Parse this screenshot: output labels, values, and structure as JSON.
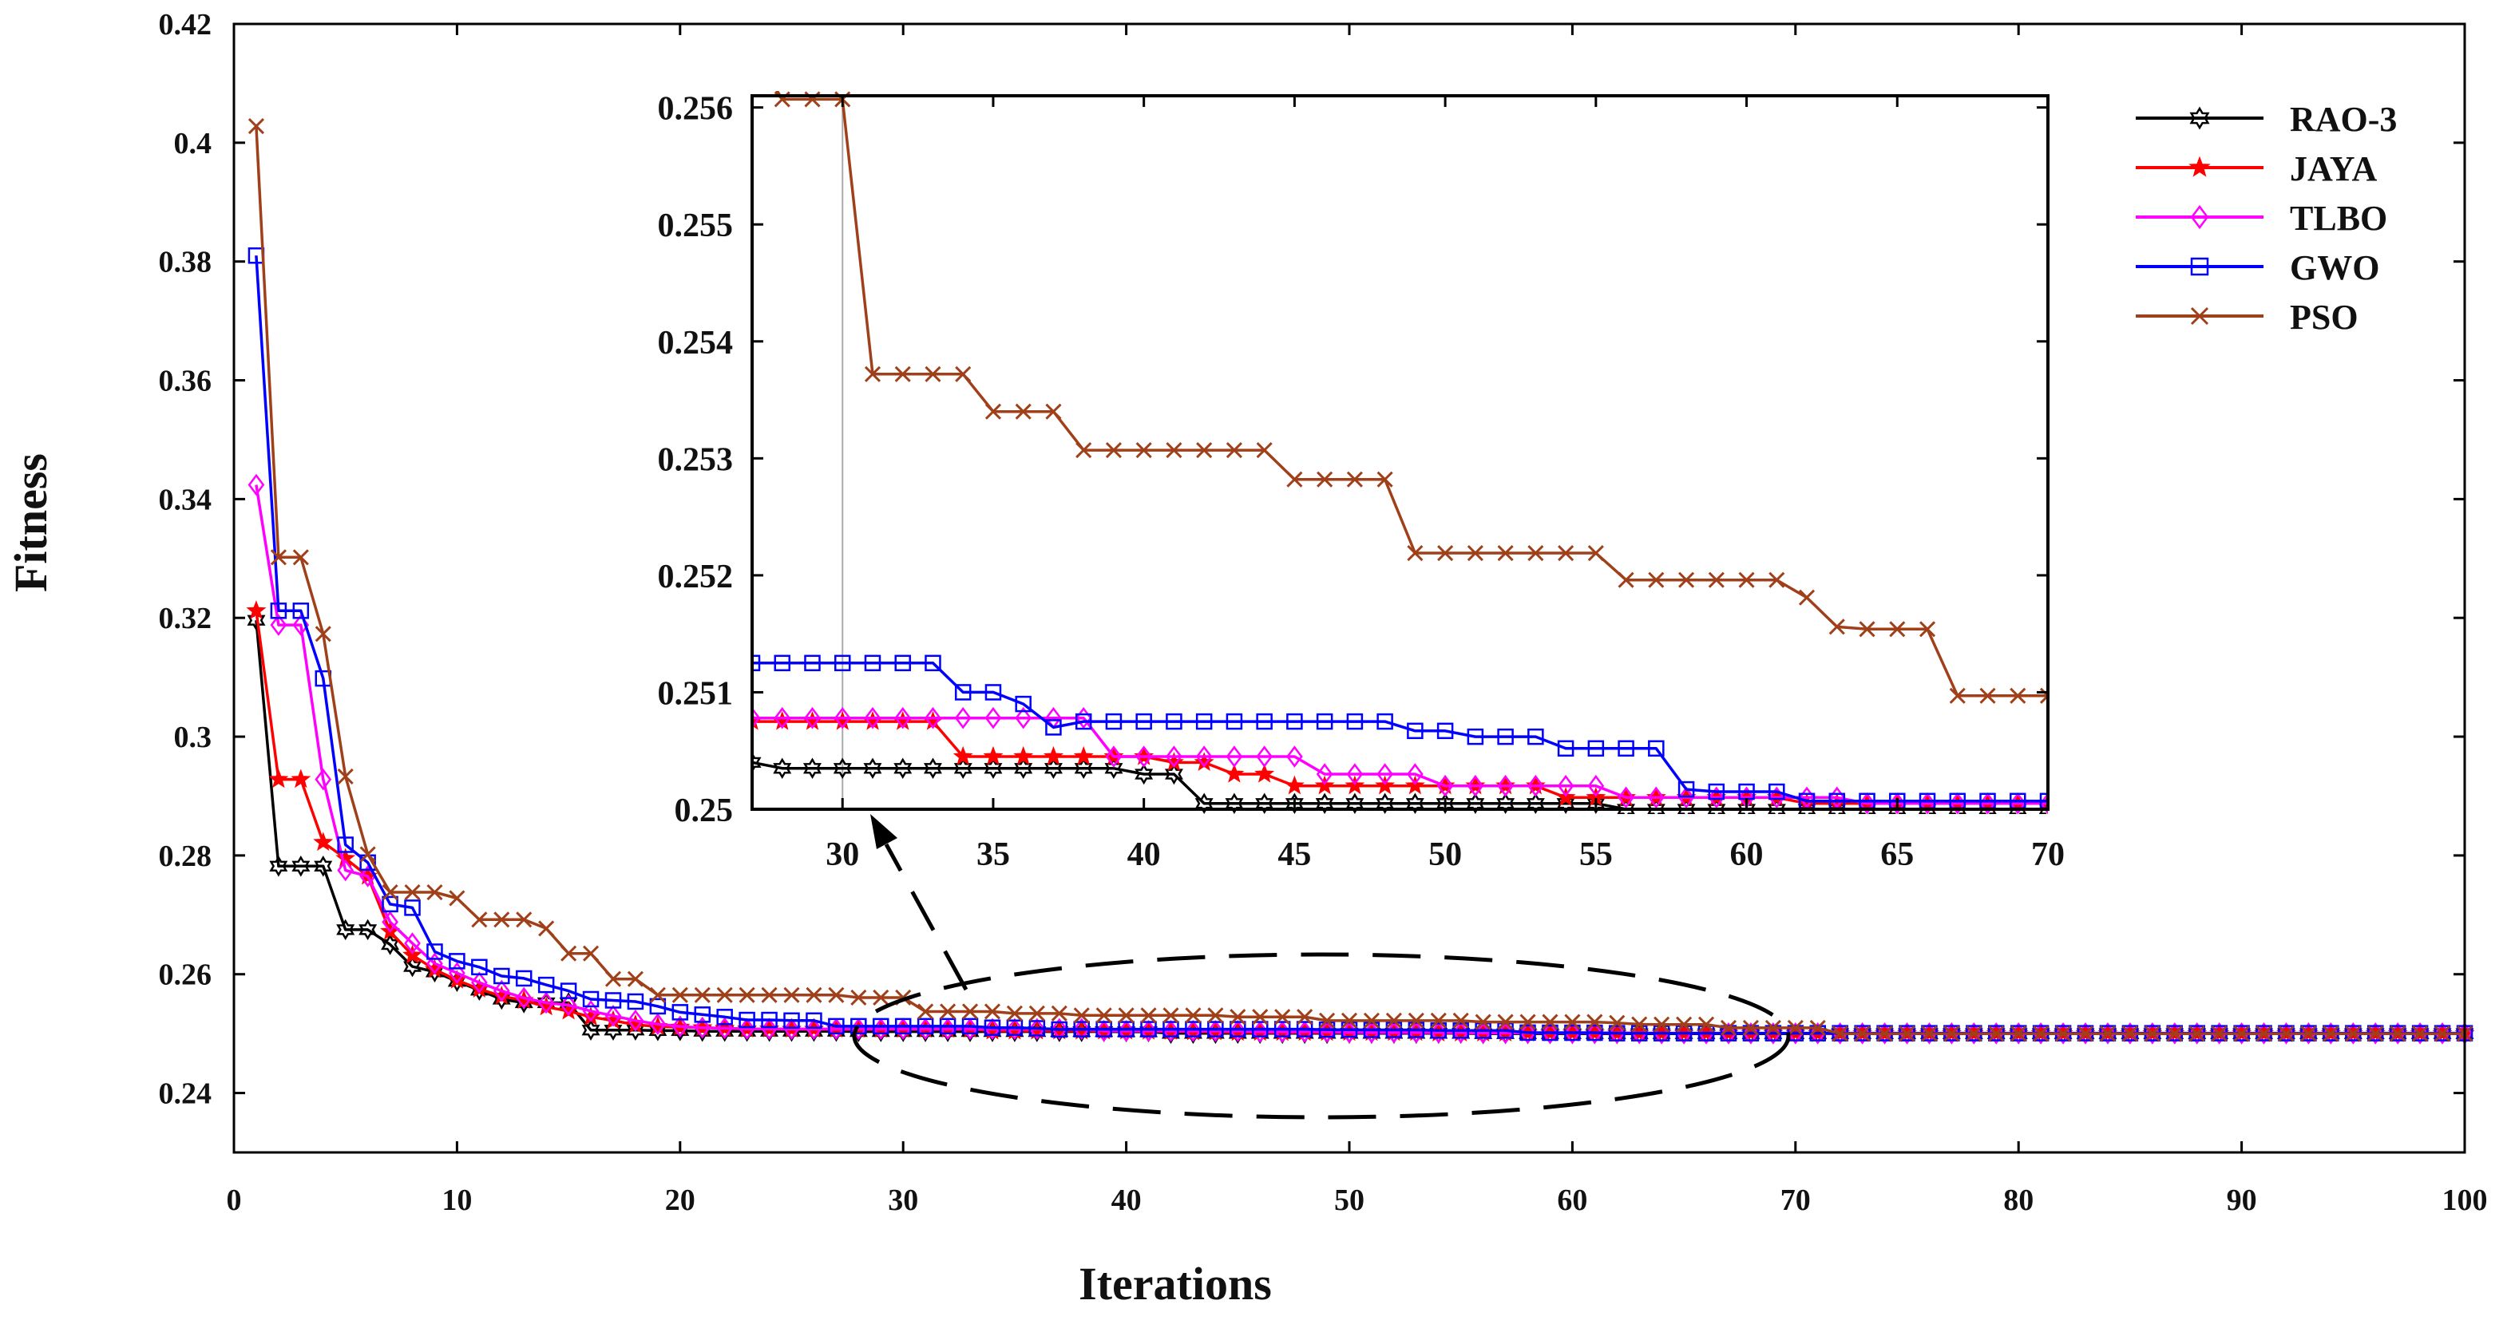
{
  "chart_data": {
    "type": "line",
    "xlabel": "Iterations",
    "ylabel": "Fitness",
    "xlim": [
      0,
      100
    ],
    "ylim": [
      0.23,
      0.42
    ],
    "xticks": [
      "0",
      "10",
      "20",
      "30",
      "40",
      "50",
      "60",
      "70",
      "80",
      "90",
      "100"
    ],
    "yticks": [
      "0.24",
      "0.26",
      "0.28",
      "0.3",
      "0.32",
      "0.34",
      "0.36",
      "0.38",
      "0.4",
      "0.42"
    ],
    "legend_position": "top-right",
    "series": [
      {
        "name": "RAO-3",
        "color": "#000000",
        "marker": "hexagram",
        "values": [
          0.3196,
          0.2782,
          0.2782,
          0.2782,
          0.2675,
          0.2675,
          0.265,
          0.2613,
          0.2604,
          0.2588,
          0.2573,
          0.2558,
          0.2552,
          0.2552,
          0.2552,
          0.2506,
          0.2506,
          0.2506,
          0.2505,
          0.2505,
          0.2504,
          0.2504,
          0.2504,
          0.2504,
          0.2504,
          0.2504,
          0.2504,
          0.25035,
          0.25035,
          0.25035,
          0.25035,
          0.25035,
          0.25035,
          0.25035,
          0.25035,
          0.25035,
          0.25035,
          0.25035,
          0.25035,
          0.2503,
          0.2503,
          0.25005,
          0.25005,
          0.25005,
          0.25005,
          0.25005,
          0.25005,
          0.25005,
          0.25005,
          0.25005,
          0.25005,
          0.25005,
          0.25005,
          0.25005,
          0.25005,
          0.25,
          0.25,
          0.25,
          0.25,
          0.25,
          0.25,
          0.25,
          0.25,
          0.25,
          0.25,
          0.25,
          0.25,
          0.25,
          0.25,
          0.25,
          0.25,
          0.25,
          0.25,
          0.25,
          0.25,
          0.25,
          0.25,
          0.25,
          0.25,
          0.25,
          0.25,
          0.25,
          0.25,
          0.25,
          0.25,
          0.25,
          0.25,
          0.25,
          0.25,
          0.25,
          0.25,
          0.25,
          0.25,
          0.25,
          0.25,
          0.25,
          0.25,
          0.25,
          0.25,
          0.25
        ]
      },
      {
        "name": "JAYA",
        "color": "#ff0000",
        "marker": "star",
        "values": [
          0.3212,
          0.2928,
          0.2928,
          0.2822,
          0.2795,
          0.2765,
          0.2672,
          0.2632,
          0.2608,
          0.259,
          0.2575,
          0.2563,
          0.2556,
          0.2545,
          0.2538,
          0.2528,
          0.2522,
          0.2515,
          0.2512,
          0.2511,
          0.251,
          0.2509,
          0.2508,
          0.2508,
          0.25075,
          0.25075,
          0.25075,
          0.25075,
          0.25075,
          0.25075,
          0.25075,
          0.25075,
          0.25075,
          0.25045,
          0.25045,
          0.25045,
          0.25045,
          0.25045,
          0.25045,
          0.25045,
          0.2504,
          0.2504,
          0.2503,
          0.2503,
          0.2502,
          0.2502,
          0.2502,
          0.2502,
          0.2502,
          0.2502,
          0.2502,
          0.2502,
          0.2502,
          0.2501,
          0.2501,
          0.2501,
          0.2501,
          0.2501,
          0.2501,
          0.2501,
          0.2501,
          0.25005,
          0.25005,
          0.25005,
          0.25005,
          0.25005,
          0.25005,
          0.25005,
          0.25005,
          0.25005,
          0.25,
          0.25,
          0.25,
          0.25,
          0.25,
          0.25,
          0.25,
          0.25,
          0.25,
          0.25,
          0.25,
          0.25,
          0.25,
          0.25,
          0.25,
          0.25,
          0.25,
          0.25,
          0.25,
          0.25,
          0.25,
          0.25,
          0.25,
          0.25,
          0.25,
          0.25,
          0.25,
          0.25,
          0.25,
          0.25
        ]
      },
      {
        "name": "TLBO",
        "color": "#ff00ff",
        "marker": "diamond",
        "values": [
          0.3424,
          0.3188,
          0.3188,
          0.2928,
          0.2775,
          0.2765,
          0.2688,
          0.2652,
          0.2618,
          0.2602,
          0.2586,
          0.2572,
          0.256,
          0.2552,
          0.2548,
          0.2538,
          0.253,
          0.2522,
          0.2516,
          0.2512,
          0.251,
          0.2509,
          0.2508,
          0.2508,
          0.25078,
          0.25078,
          0.25078,
          0.25078,
          0.25078,
          0.25078,
          0.25078,
          0.25078,
          0.25078,
          0.25078,
          0.25078,
          0.25078,
          0.25078,
          0.25078,
          0.25045,
          0.25045,
          0.25045,
          0.25045,
          0.25045,
          0.25045,
          0.25045,
          0.2503,
          0.2503,
          0.2503,
          0.2503,
          0.2502,
          0.2502,
          0.2502,
          0.2502,
          0.2502,
          0.2502,
          0.2501,
          0.2501,
          0.2501,
          0.2501,
          0.2501,
          0.2501,
          0.2501,
          0.2501,
          0.25005,
          0.25005,
          0.25005,
          0.25005,
          0.25005,
          0.25005,
          0.25005,
          0.25005,
          0.25005,
          0.25005,
          0.25005,
          0.25005,
          0.25005,
          0.25005,
          0.25005,
          0.25005,
          0.25005,
          0.25005,
          0.25005,
          0.25005,
          0.25005,
          0.25005,
          0.25005,
          0.25005,
          0.25005,
          0.25005,
          0.25005,
          0.25005,
          0.25005,
          0.25005,
          0.25005,
          0.25005,
          0.25005,
          0.25005,
          0.25005,
          0.25005,
          0.25005
        ]
      },
      {
        "name": "GWO",
        "color": "#0000ff",
        "marker": "square",
        "values": [
          0.381,
          0.3212,
          0.3212,
          0.3098,
          0.2818,
          0.2788,
          0.2718,
          0.2712,
          0.2638,
          0.2622,
          0.2612,
          0.2597,
          0.2593,
          0.2582,
          0.2572,
          0.2558,
          0.2556,
          0.2554,
          0.2546,
          0.2536,
          0.2532,
          0.2528,
          0.2523,
          0.2523,
          0.2522,
          0.2522,
          0.25125,
          0.25125,
          0.25125,
          0.25125,
          0.25125,
          0.25125,
          0.25125,
          0.251,
          0.251,
          0.2509,
          0.2507,
          0.25075,
          0.25075,
          0.25075,
          0.25075,
          0.25075,
          0.25075,
          0.25075,
          0.25075,
          0.25075,
          0.25075,
          0.25075,
          0.25067,
          0.25067,
          0.25062,
          0.25062,
          0.25062,
          0.25052,
          0.25052,
          0.25052,
          0.25052,
          0.25017,
          0.25015,
          0.25015,
          0.25015,
          0.25007,
          0.25007,
          0.25007,
          0.25007,
          0.25007,
          0.25007,
          0.25007,
          0.25007,
          0.25007,
          0.25007,
          0.25007,
          0.25007,
          0.25007,
          0.25007,
          0.25007,
          0.25007,
          0.25007,
          0.25007,
          0.25007,
          0.25007,
          0.25007,
          0.25007,
          0.25007,
          0.25007,
          0.25007,
          0.25007,
          0.25007,
          0.25007,
          0.25007,
          0.25007,
          0.25007,
          0.25007,
          0.25007,
          0.25007,
          0.25007,
          0.25007,
          0.25007,
          0.25007,
          0.25007
        ]
      },
      {
        "name": "PSO",
        "color": "#a0401a",
        "marker": "x",
        "values": [
          0.4028,
          0.3302,
          0.3302,
          0.3173,
          0.2933,
          0.2802,
          0.2738,
          0.2738,
          0.2738,
          0.2728,
          0.2692,
          0.2692,
          0.2692,
          0.2677,
          0.2635,
          0.2635,
          0.2592,
          0.2592,
          0.2565,
          0.2565,
          0.2565,
          0.2565,
          0.2565,
          0.2565,
          0.2565,
          0.2565,
          0.2565,
          0.25607,
          0.25607,
          0.25607,
          0.25372,
          0.25372,
          0.25372,
          0.25372,
          0.2534,
          0.2534,
          0.2534,
          0.25307,
          0.25307,
          0.25307,
          0.25307,
          0.25307,
          0.25307,
          0.25307,
          0.25282,
          0.25282,
          0.25282,
          0.25282,
          0.25219,
          0.25219,
          0.25219,
          0.25219,
          0.25219,
          0.25219,
          0.25219,
          0.25196,
          0.25196,
          0.25196,
          0.25196,
          0.25196,
          0.25196,
          0.25181,
          0.25156,
          0.25154,
          0.25154,
          0.25154,
          0.25097,
          0.25097,
          0.25097,
          0.25097,
          0.25097,
          0.25,
          0.25,
          0.25,
          0.25,
          0.25,
          0.25,
          0.25,
          0.25,
          0.25,
          0.25,
          0.25,
          0.25,
          0.25,
          0.25,
          0.25,
          0.25,
          0.25,
          0.25,
          0.25,
          0.25,
          0.25,
          0.25,
          0.25,
          0.25,
          0.25,
          0.25,
          0.25,
          0.25,
          0.25
        ]
      }
    ],
    "inset": {
      "type": "line",
      "xlim": [
        27,
        70
      ],
      "ylim": [
        0.25,
        0.2561
      ],
      "xticks": [
        "30",
        "35",
        "40",
        "45",
        "50",
        "55",
        "60",
        "65",
        "70"
      ],
      "yticks": [
        "0.25",
        "0.251",
        "0.252",
        "0.253",
        "0.254",
        "0.255",
        "0.256"
      ]
    }
  }
}
